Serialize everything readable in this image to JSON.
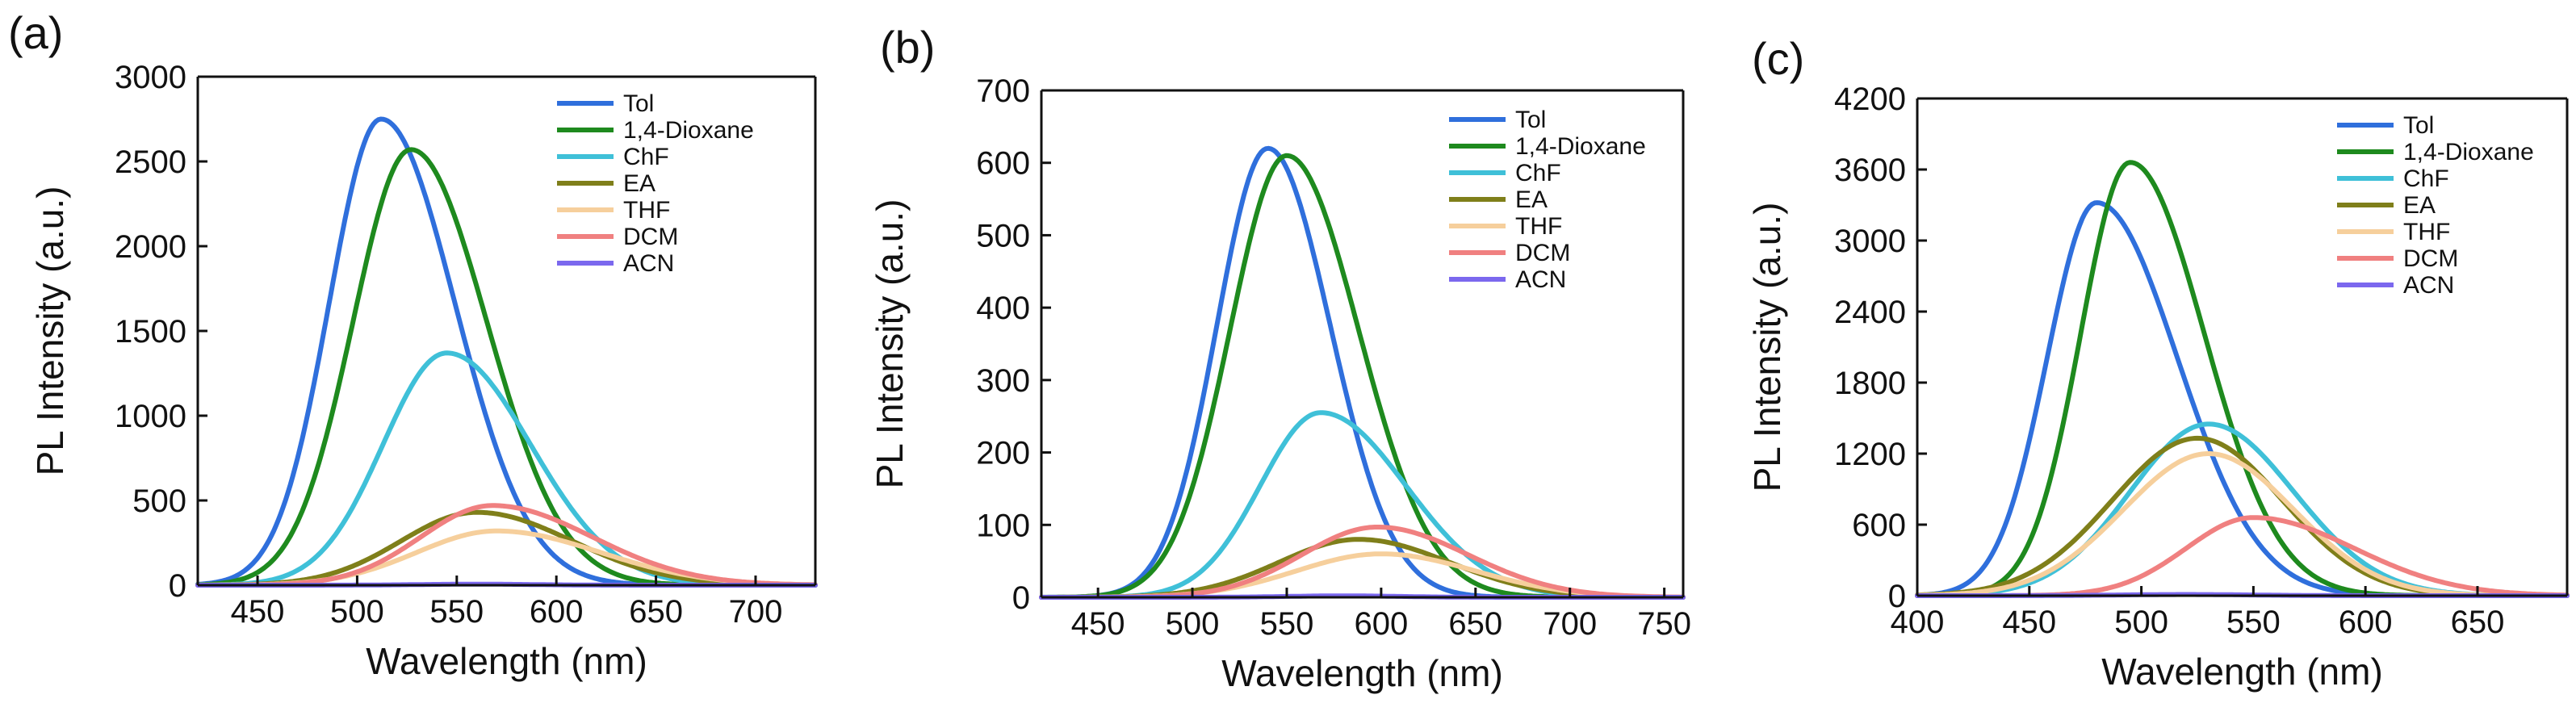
{
  "chart_data": [
    {
      "panel_label": "(a)",
      "type": "line",
      "xlabel": "Wavelength (nm)",
      "ylabel": "PL Intensity (a.u.)",
      "xlim": [
        420,
        730
      ],
      "ylim": [
        0,
        3000
      ],
      "xticks": [
        "450",
        "500",
        "550",
        "600",
        "650",
        "700"
      ],
      "xtick_values": [
        450,
        500,
        550,
        600,
        650,
        700
      ],
      "yticks": [
        "0",
        "500",
        "1000",
        "1500",
        "2000",
        "2500",
        "3000"
      ],
      "ytick_values": [
        0,
        500,
        1000,
        1500,
        2000,
        2500,
        3000
      ],
      "legend_position": "top-right",
      "series": [
        {
          "name": "Tol",
          "color": "#2f6fdc",
          "peak": 512,
          "amplitude": 2750,
          "width_left": 26,
          "width_right": 37
        },
        {
          "name": "1,4-Dioxane",
          "color": "#1e8a1e",
          "peak": 527,
          "amplitude": 2570,
          "width_left": 29,
          "width_right": 38
        },
        {
          "name": "ChF",
          "color": "#3fc0d8",
          "peak": 545,
          "amplitude": 1370,
          "width_left": 32,
          "width_right": 42
        },
        {
          "name": "EA",
          "color": "#7f7f1a",
          "peak": 560,
          "amplitude": 430,
          "width_left": 38,
          "width_right": 48
        },
        {
          "name": "THF",
          "color": "#f6cf9c",
          "peak": 570,
          "amplitude": 320,
          "width_left": 40,
          "width_right": 52
        },
        {
          "name": "DCM",
          "color": "#f08080",
          "peak": 568,
          "amplitude": 470,
          "width_left": 36,
          "width_right": 50
        },
        {
          "name": "ACN",
          "color": "#7b68ee",
          "peak": 560,
          "amplitude": 6,
          "width_left": 30,
          "width_right": 30
        }
      ]
    },
    {
      "panel_label": "(b)",
      "type": "line",
      "xlabel": "Wavelength (nm)",
      "ylabel": "PL Intensity (a.u.)",
      "xlim": [
        420,
        760
      ],
      "ylim": [
        0,
        700
      ],
      "xticks": [
        "450",
        "500",
        "550",
        "600",
        "650",
        "700",
        "750"
      ],
      "xtick_values": [
        450,
        500,
        550,
        600,
        650,
        700,
        750
      ],
      "yticks": [
        "0",
        "100",
        "200",
        "300",
        "400",
        "500",
        "600",
        "700"
      ],
      "ytick_values": [
        0,
        100,
        200,
        300,
        400,
        500,
        600,
        700
      ],
      "legend_position": "top-right",
      "series": [
        {
          "name": "Tol",
          "color": "#2f6fdc",
          "peak": 540,
          "amplitude": 620,
          "width_left": 27,
          "width_right": 33
        },
        {
          "name": "1,4-Dioxane",
          "color": "#1e8a1e",
          "peak": 550,
          "amplitude": 610,
          "width_left": 30,
          "width_right": 38
        },
        {
          "name": "ChF",
          "color": "#3fc0d8",
          "peak": 568,
          "amplitude": 255,
          "width_left": 32,
          "width_right": 45
        },
        {
          "name": "EA",
          "color": "#7f7f1a",
          "peak": 588,
          "amplitude": 80,
          "width_left": 42,
          "width_right": 48
        },
        {
          "name": "THF",
          "color": "#f6cf9c",
          "peak": 600,
          "amplitude": 60,
          "width_left": 45,
          "width_right": 50
        },
        {
          "name": "DCM",
          "color": "#f08080",
          "peak": 598,
          "amplitude": 97,
          "width_left": 40,
          "width_right": 48
        },
        {
          "name": "ACN",
          "color": "#7b68ee",
          "peak": 580,
          "amplitude": 2,
          "width_left": 30,
          "width_right": 30
        }
      ]
    },
    {
      "panel_label": "(c)",
      "type": "line",
      "xlabel": "Wavelength (nm)",
      "ylabel": "PL Intensity (a.u.)",
      "xlim": [
        400,
        690
      ],
      "ylim": [
        0,
        4200
      ],
      "xticks": [
        "400",
        "450",
        "500",
        "550",
        "600",
        "650"
      ],
      "xtick_values": [
        400,
        450,
        500,
        550,
        600,
        650
      ],
      "yticks": [
        "0",
        "600",
        "1200",
        "1800",
        "2400",
        "3000",
        "3600",
        "4200"
      ],
      "ytick_values": [
        0,
        600,
        1200,
        1800,
        2400,
        3000,
        3600,
        4200
      ],
      "legend_position": "top-right",
      "series": [
        {
          "name": "Tol",
          "color": "#2f6fdc",
          "peak": 480,
          "amplitude": 3320,
          "width_left": 22,
          "width_right": 36
        },
        {
          "name": "1,4-Dioxane",
          "color": "#1e8a1e",
          "peak": 495,
          "amplitude": 3660,
          "width_left": 22,
          "width_right": 33
        },
        {
          "name": "ChF",
          "color": "#3fc0d8",
          "peak": 530,
          "amplitude": 1450,
          "width_left": 35,
          "width_right": 38
        },
        {
          "name": "EA",
          "color": "#7f7f1a",
          "peak": 525,
          "amplitude": 1330,
          "width_left": 38,
          "width_right": 38
        },
        {
          "name": "THF",
          "color": "#f6cf9c",
          "peak": 530,
          "amplitude": 1200,
          "width_left": 38,
          "width_right": 38
        },
        {
          "name": "DCM",
          "color": "#f08080",
          "peak": 550,
          "amplitude": 660,
          "width_left": 30,
          "width_right": 45
        },
        {
          "name": "ACN",
          "color": "#7b68ee",
          "peak": 520,
          "amplitude": 10,
          "width_left": 30,
          "width_right": 30
        }
      ]
    }
  ]
}
